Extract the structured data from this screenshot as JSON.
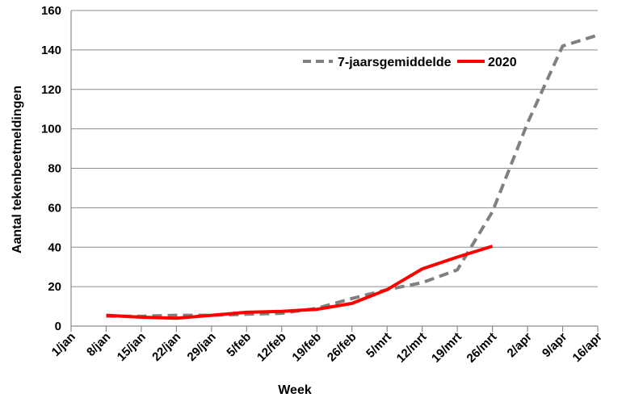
{
  "chart_data": {
    "type": "line",
    "xlabel": "Week",
    "ylabel": "Aantal tekenbeetmeldingen",
    "ylim": [
      0,
      160
    ],
    "yticks": [
      0,
      20,
      40,
      60,
      80,
      100,
      120,
      140,
      160
    ],
    "categories": [
      "1/jan",
      "8/jan",
      "15/jan",
      "22/jan",
      "29/jan",
      "5/feb",
      "12/feb",
      "19/feb",
      "26/feb",
      "5/mrt",
      "12/mrt",
      "19/mrt",
      "26/mrt",
      "2/apr",
      "9/apr",
      "16/apr"
    ],
    "grid": "horizontal",
    "legend_position": "top-right",
    "series": [
      {
        "name": "7-jaarsgemiddelde",
        "color": "#808080",
        "dash": true,
        "values": [
          null,
          5,
          5,
          5.5,
          5.5,
          6,
          6.5,
          9,
          14,
          18.5,
          22,
          28.5,
          58,
          103,
          142,
          147.5
        ]
      },
      {
        "name": "2020",
        "color": "#ff0000",
        "dash": false,
        "values": [
          null,
          5.5,
          4.5,
          4,
          5.5,
          7,
          7.5,
          8.5,
          11.5,
          18.5,
          29,
          35,
          40.5,
          null,
          null,
          null
        ]
      }
    ]
  }
}
